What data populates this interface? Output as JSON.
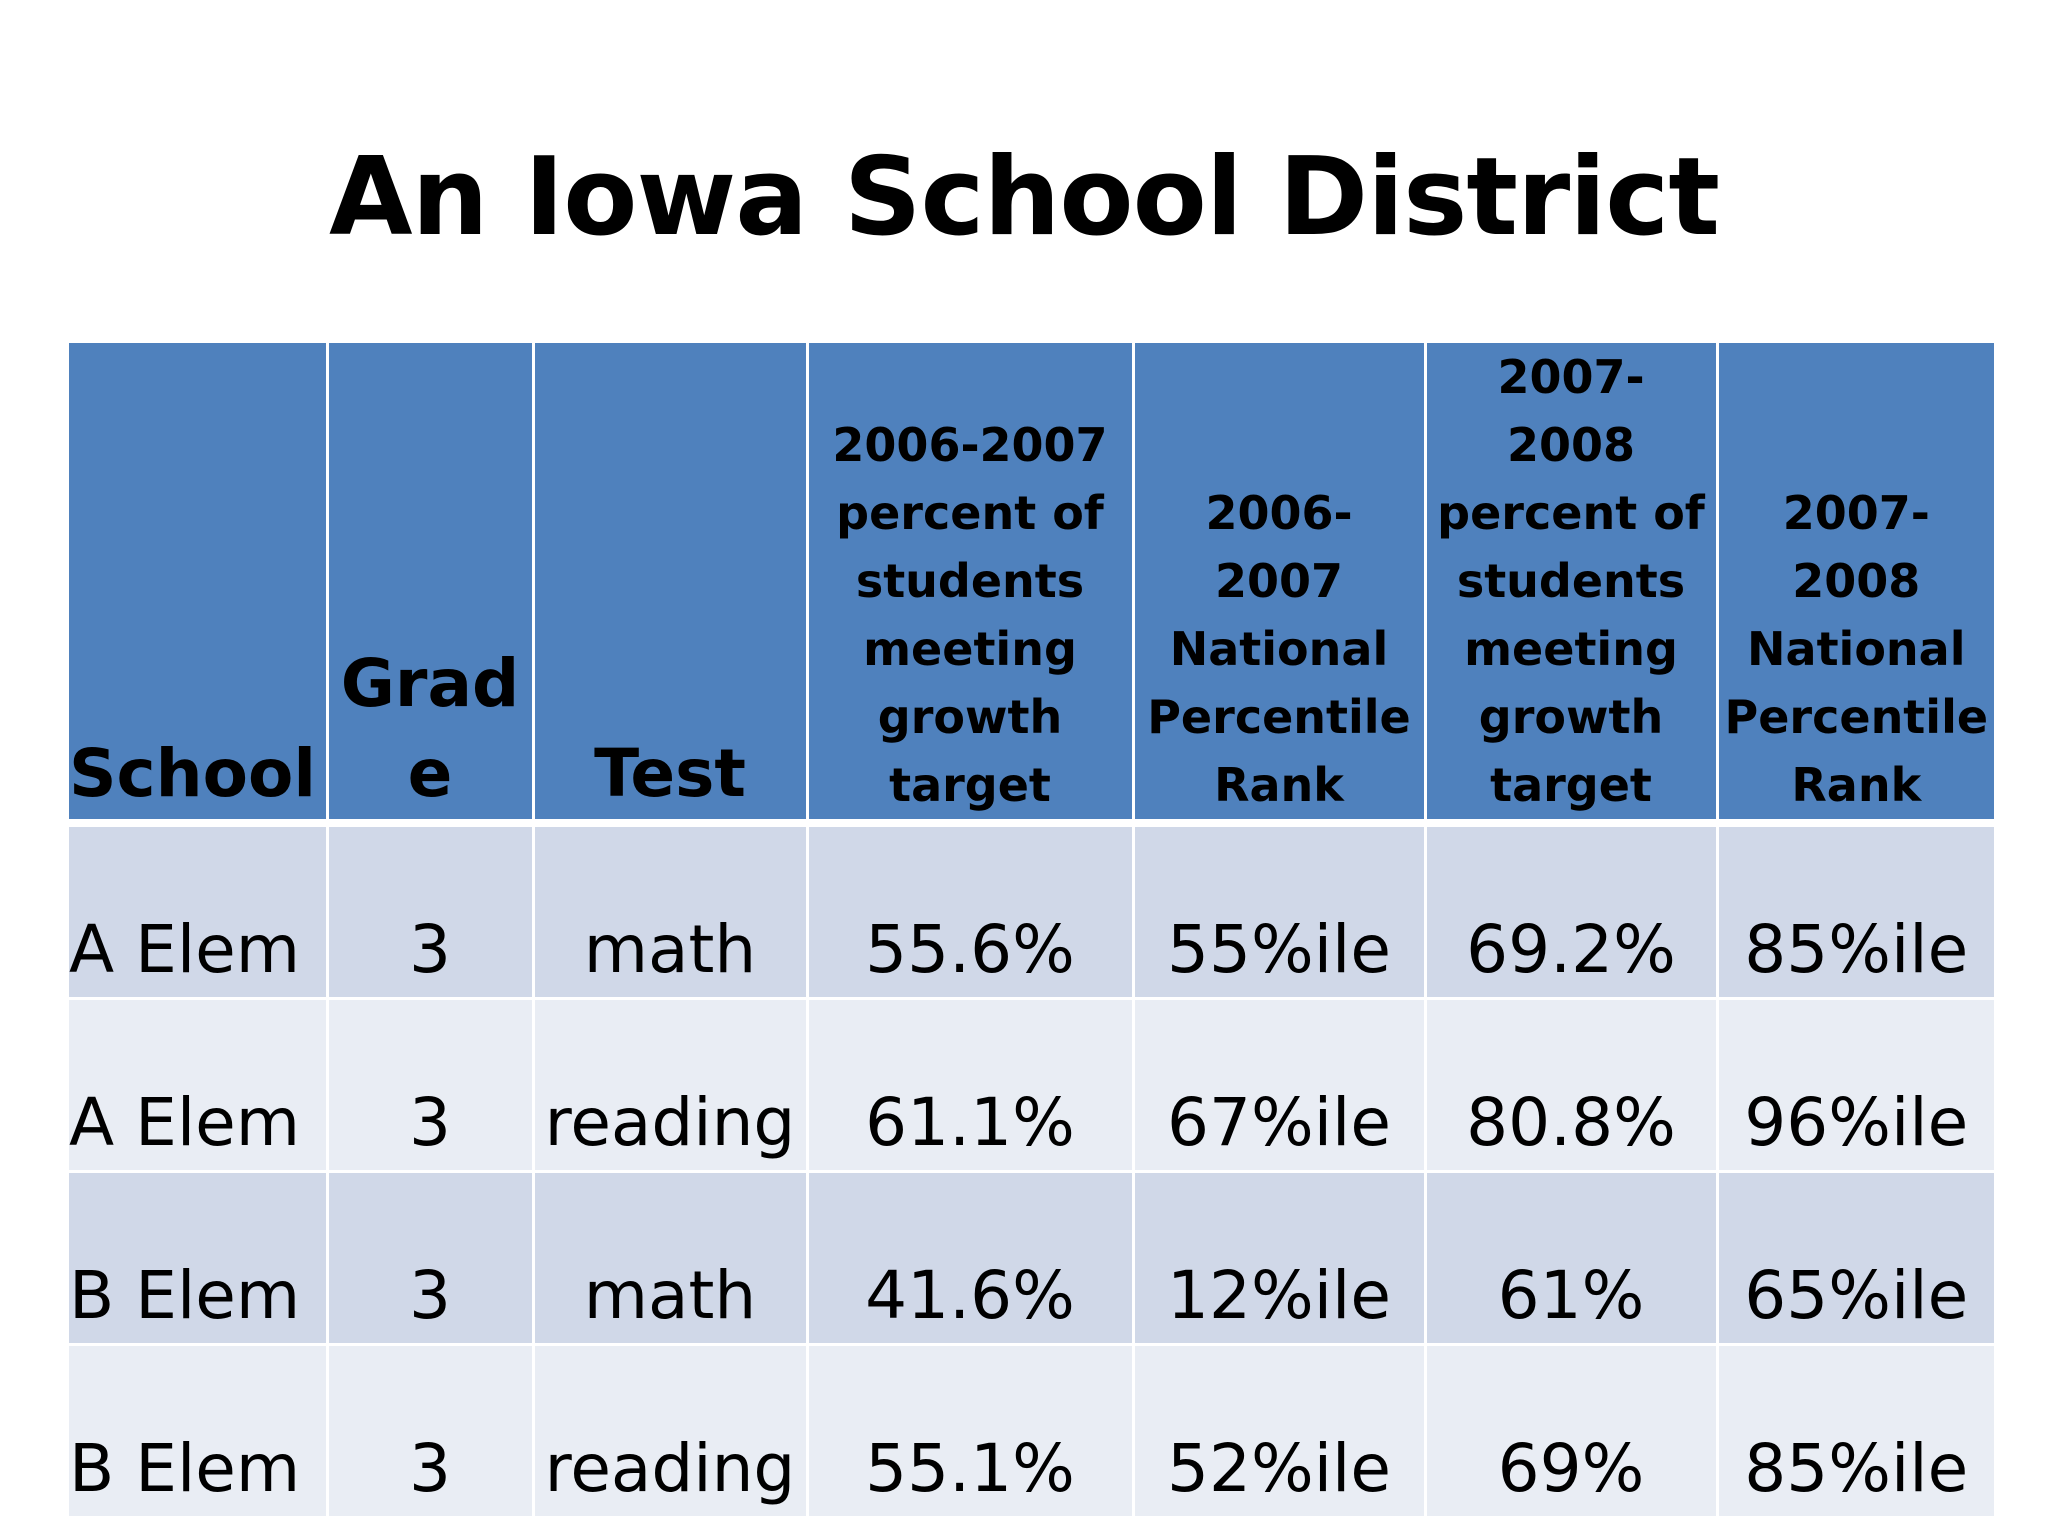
{
  "title": "An Iowa School District",
  "table": {
    "headers": [
      "School",
      "Grad\ne",
      "Test",
      "2006-2007 percent of students meeting growth target",
      "2006-2007 National Percentile Rank",
      "2007-2008 percent of students meeting growth target",
      "2007-2008 National Percentile Rank"
    ],
    "rows": [
      [
        "A Elem",
        "3",
        "math",
        "55.6%",
        "55%ile",
        "69.2%",
        "85%ile"
      ],
      [
        "A Elem",
        "3",
        "reading",
        "61.1%",
        "67%ile",
        "80.8%",
        "96%ile"
      ],
      [
        "B Elem",
        "3",
        "math",
        "41.6%",
        "12%ile",
        "61%",
        "65%ile"
      ],
      [
        "B Elem",
        "3",
        "reading",
        "55.1%",
        "52%ile",
        "69%",
        "85%ile"
      ]
    ]
  },
  "colors": {
    "header_bg": "#4f81bd",
    "row_odd_bg": "#d0d8e8",
    "row_even_bg": "#e9edf4"
  }
}
